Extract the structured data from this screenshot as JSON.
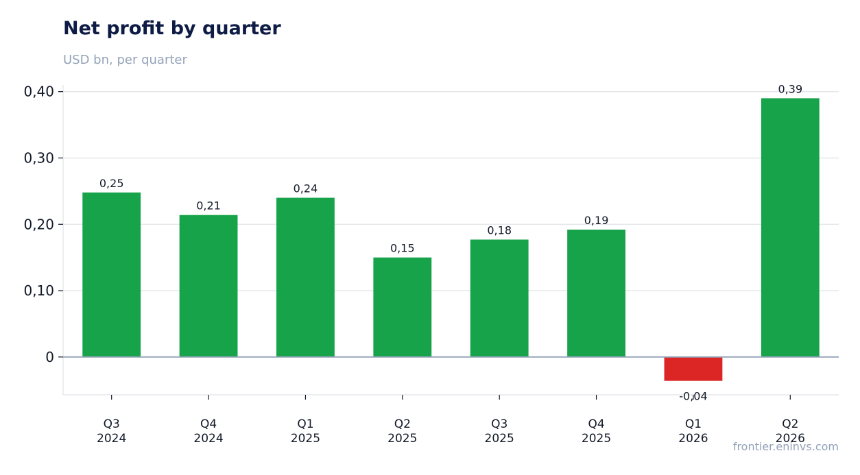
{
  "header": {
    "title": "Net profit by quarter",
    "subtitle": "USD bn, per quarter"
  },
  "footer": {
    "source": "frontier.eninvs.com"
  },
  "colors": {
    "positive": "#17a34a",
    "negative": "#dc2626",
    "gridline": "#e5e7eb",
    "zero_line": "#94a3b8",
    "text": "#111827"
  },
  "chart_data": {
    "type": "bar",
    "categories": [
      [
        "Q3",
        "2024"
      ],
      [
        "Q4",
        "2024"
      ],
      [
        "Q1",
        "2025"
      ],
      [
        "Q2",
        "2025"
      ],
      [
        "Q3",
        "2025"
      ],
      [
        "Q4",
        "2025"
      ],
      [
        "Q1",
        "2026"
      ],
      [
        "Q2",
        "2026"
      ]
    ],
    "values": [
      0.248,
      0.214,
      0.24,
      0.15,
      0.177,
      0.192,
      -0.036,
      0.39
    ],
    "data_labels": [
      "0,25",
      "0,21",
      "0,24",
      "0,15",
      "0,18",
      "0,19",
      "-0,04",
      "0,39"
    ],
    "y_ticks": [
      0,
      0.1,
      0.2,
      0.3,
      0.4
    ],
    "y_tick_labels": [
      "0",
      "0,10",
      "0,20",
      "0,30",
      "0,40"
    ],
    "ylim": [
      -0.057,
      0.41
    ],
    "grid": true,
    "legend": "none"
  }
}
